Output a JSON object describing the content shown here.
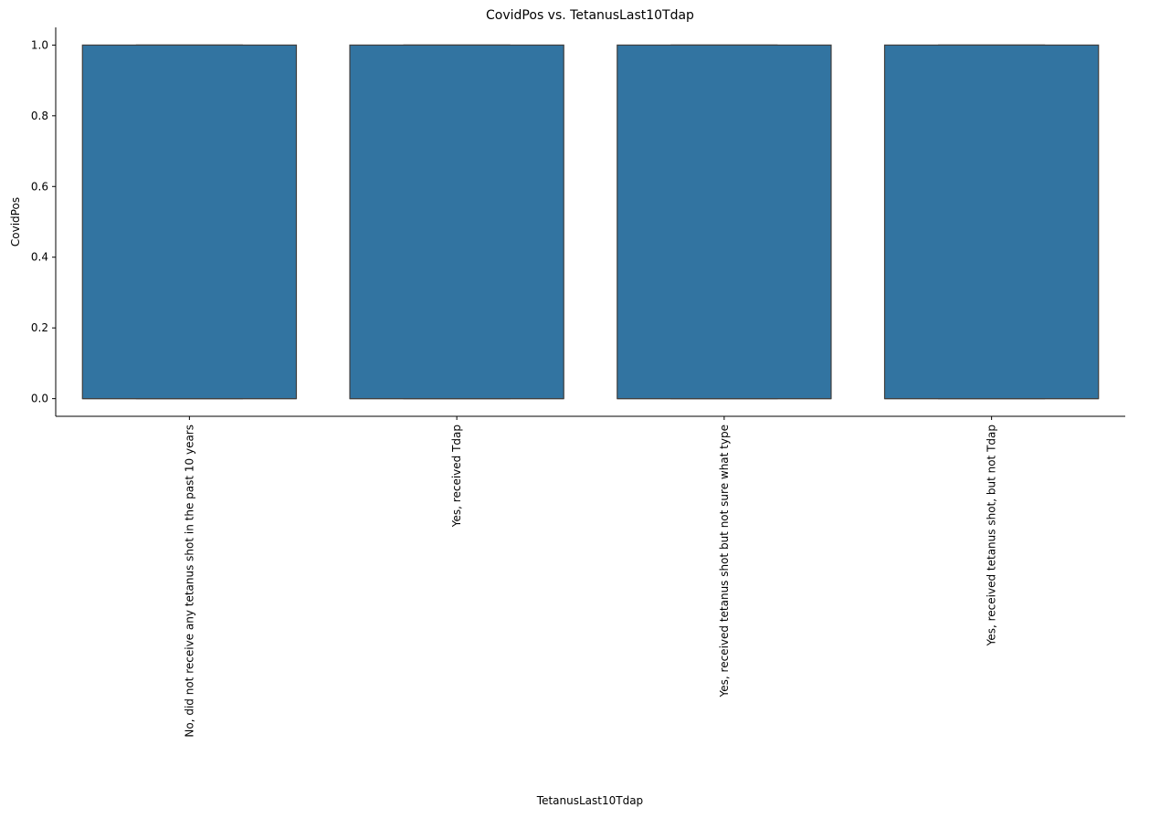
{
  "chart_data": {
    "type": "box",
    "title": "CovidPos vs. TetanusLast10Tdap",
    "xlabel": "TetanusLast10Tdap",
    "ylabel": "CovidPos",
    "categories": [
      "No, did not receive any tetanus shot in the past 10 years",
      "Yes, received Tdap",
      "Yes, received tetanus shot but not sure what type",
      "Yes, received tetanus shot, but not Tdap"
    ],
    "boxes": [
      {
        "q1": 0.0,
        "median": 0.0,
        "q3": 1.0,
        "whisker_low": 0.0,
        "whisker_high": 1.0
      },
      {
        "q1": 0.0,
        "median": 0.0,
        "q3": 1.0,
        "whisker_low": 0.0,
        "whisker_high": 1.0
      },
      {
        "q1": 0.0,
        "median": 0.0,
        "q3": 1.0,
        "whisker_low": 0.0,
        "whisker_high": 1.0
      },
      {
        "q1": 0.0,
        "median": 0.0,
        "q3": 1.0,
        "whisker_low": 0.0,
        "whisker_high": 1.0
      }
    ],
    "ylim": [
      -0.05,
      1.05
    ],
    "yticks": [
      0.0,
      0.2,
      0.4,
      0.6,
      0.8,
      1.0
    ],
    "ytick_labels": [
      "0.0",
      "0.2",
      "0.4",
      "0.6",
      "0.8",
      "1.0"
    ],
    "grid": false,
    "colors": {
      "box_fill": "#3274a1",
      "box_edge": "#3f3f3f",
      "axis": "#000000"
    }
  }
}
